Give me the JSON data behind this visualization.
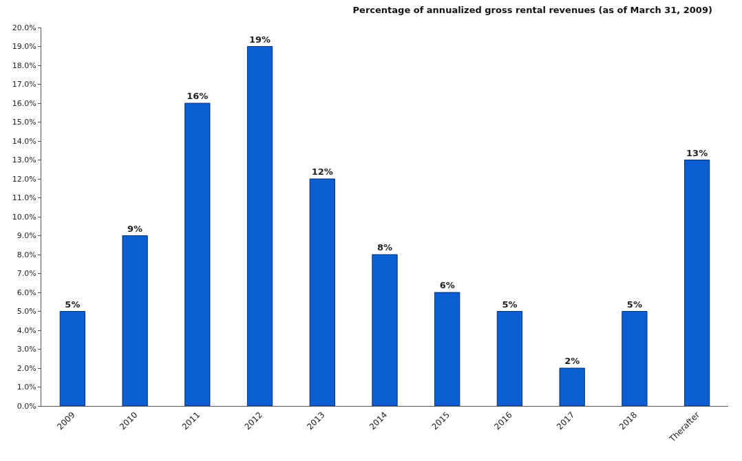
{
  "chart_data": {
    "type": "bar",
    "title": "Percentage of annualized gross rental revenues (as of March 31, 2009)",
    "categories": [
      "2009",
      "2010",
      "2011",
      "2012",
      "2013",
      "2014",
      "2015",
      "2016",
      "2017",
      "2018",
      "Therafter"
    ],
    "values": [
      5,
      9,
      16,
      19,
      12,
      8,
      6,
      5,
      2,
      5,
      13
    ],
    "value_labels": [
      "5%",
      "9%",
      "16%",
      "19%",
      "12%",
      "8%",
      "6%",
      "5%",
      "2%",
      "5%",
      "13%"
    ],
    "color": "#0b5fd3",
    "ylim": [
      0,
      20
    ],
    "yticks": [
      {
        "value": 0,
        "label": "0.0%"
      },
      {
        "value": 1,
        "label": "1.0%"
      },
      {
        "value": 2,
        "label": "2.0%"
      },
      {
        "value": 3,
        "label": "3.0%"
      },
      {
        "value": 4,
        "label": "4.0%"
      },
      {
        "value": 5,
        "label": "5.0%"
      },
      {
        "value": 6,
        "label": "6.0%"
      },
      {
        "value": 7,
        "label": "7.0%"
      },
      {
        "value": 8,
        "label": "8.0%"
      },
      {
        "value": 9,
        "label": "9.0%"
      },
      {
        "value": 10,
        "label": "10.0%"
      },
      {
        "value": 11,
        "label": "11.0%"
      },
      {
        "value": 12,
        "label": "12.0%"
      },
      {
        "value": 13,
        "label": "13.0%"
      },
      {
        "value": 14,
        "label": "14.0%"
      },
      {
        "value": 15,
        "label": "15.0%"
      },
      {
        "value": 16,
        "label": "16.0%"
      },
      {
        "value": 17,
        "label": "17.0%"
      },
      {
        "value": 18,
        "label": "18.0%"
      },
      {
        "value": 19,
        "label": "19.0%"
      },
      {
        "value": 20,
        "label": "20.0%"
      }
    ]
  }
}
